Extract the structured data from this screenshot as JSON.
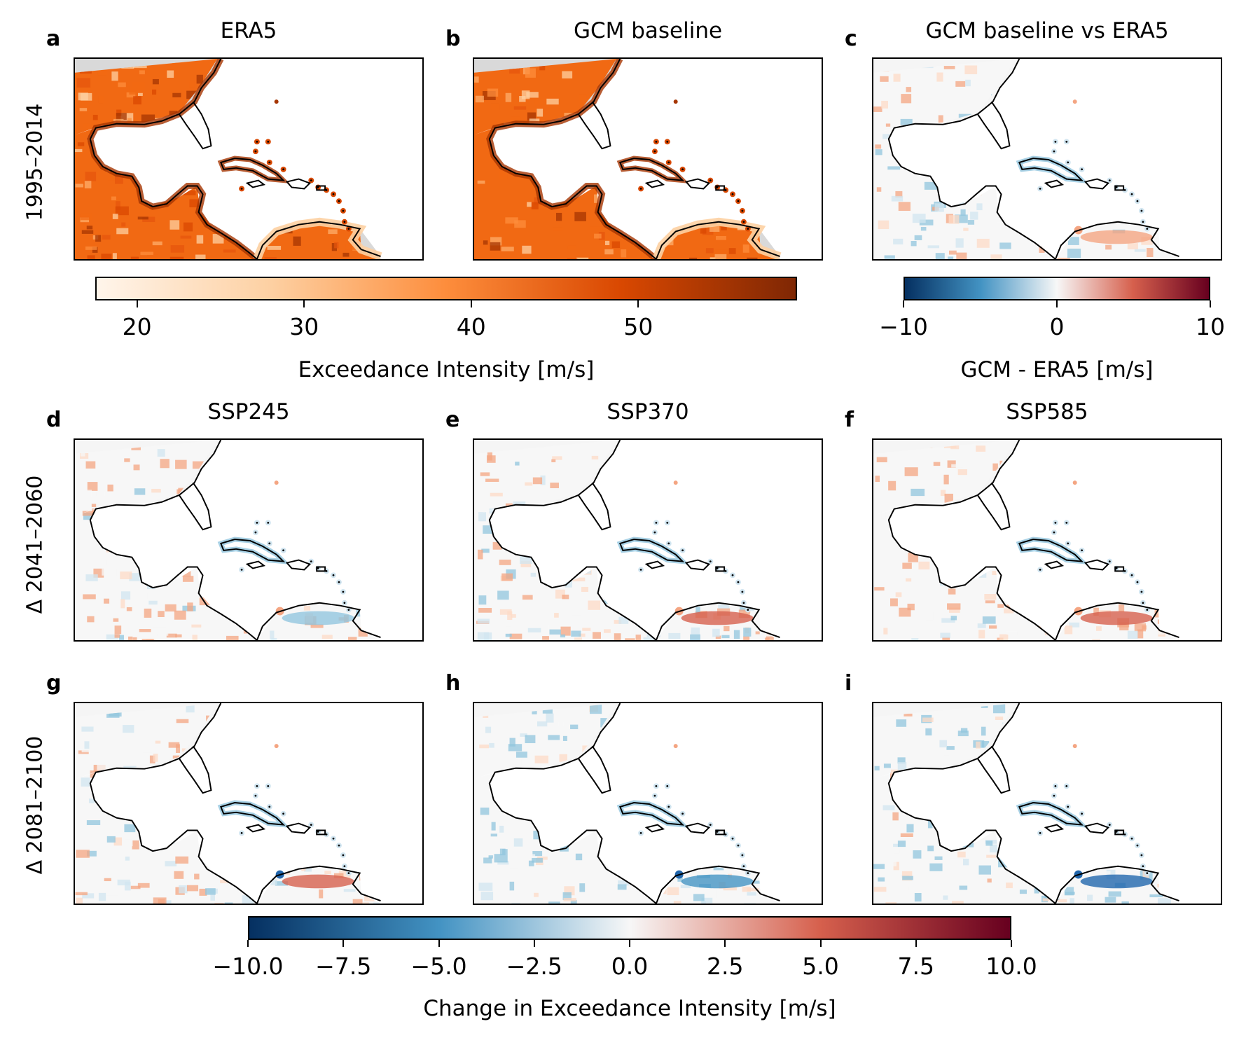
{
  "panels": [
    {
      "id": "a",
      "letter": "a",
      "title": "ERA5",
      "cmap": "oranges",
      "variant": 0
    },
    {
      "id": "b",
      "letter": "b",
      "title": "GCM baseline",
      "cmap": "oranges",
      "variant": 1
    },
    {
      "id": "c",
      "letter": "c",
      "title": "GCM baseline vs ERA5",
      "cmap": "diverging",
      "variant": 2
    },
    {
      "id": "d",
      "letter": "d",
      "title": "SSP245",
      "cmap": "diverging",
      "variant": 3
    },
    {
      "id": "e",
      "letter": "e",
      "title": "SSP370",
      "cmap": "diverging",
      "variant": 4
    },
    {
      "id": "f",
      "letter": "f",
      "title": "SSP585",
      "cmap": "diverging",
      "variant": 5
    },
    {
      "id": "g",
      "letter": "g",
      "title": "",
      "cmap": "diverging",
      "variant": 6
    },
    {
      "id": "h",
      "letter": "h",
      "title": "",
      "cmap": "diverging",
      "variant": 7
    },
    {
      "id": "i",
      "letter": "i",
      "title": "",
      "cmap": "diverging",
      "variant": 8
    }
  ],
  "row_labels": {
    "row1": "1995–2014",
    "row2": "Δ 2041–2060",
    "row3": "Δ 2081–2100"
  },
  "colorbars": {
    "intensity": {
      "label": "Exceedance Intensity [m/s]",
      "min": 17.5,
      "max": 59.5,
      "ticks": [
        20,
        30,
        40,
        50
      ],
      "tick_labels": [
        "20",
        "30",
        "40",
        "50"
      ],
      "colors": [
        "#fff5eb",
        "#fdd0a2",
        "#fd8d3c",
        "#d94801",
        "#7f2704"
      ]
    },
    "bias": {
      "label": "GCM - ERA5 [m/s]",
      "min": -10,
      "max": 10,
      "ticks": [
        -10,
        0,
        10
      ],
      "tick_labels": [
        "−10",
        "0",
        "10"
      ],
      "colors": [
        "#053061",
        "#4393c3",
        "#f7f7f7",
        "#d6604d",
        "#67001f"
      ]
    },
    "change": {
      "label": "Change in Exceedance Intensity [m/s]",
      "min": -10,
      "max": 10,
      "ticks": [
        -10,
        -7.5,
        -5,
        -2.5,
        0,
        2.5,
        5,
        7.5,
        10
      ],
      "tick_labels": [
        "−10.0",
        "−7.5",
        "−5.0",
        "−2.5",
        "0.0",
        "2.5",
        "5.0",
        "7.5",
        "10.0"
      ],
      "colors": [
        "#053061",
        "#4393c3",
        "#f7f7f7",
        "#d6604d",
        "#67001f"
      ]
    }
  }
}
